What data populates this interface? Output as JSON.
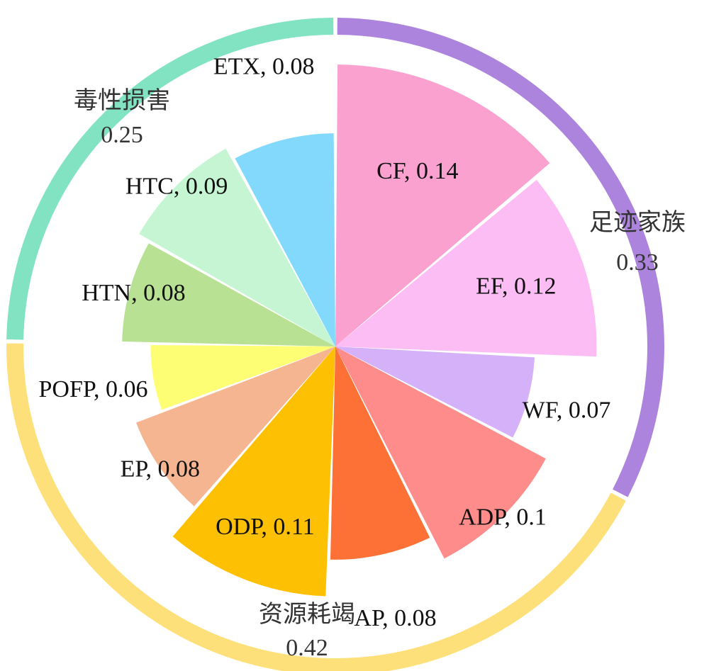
{
  "chart_data": {
    "type": "pie",
    "variant": "nightingale-rose-with-group-ring",
    "sectors": [
      {
        "label": "CF",
        "value": 0.14,
        "color": "#FBA1D0"
      },
      {
        "label": "EF",
        "value": 0.12,
        "color": "#FCBCF4"
      },
      {
        "label": "WF",
        "value": 0.07,
        "color": "#D5B1F9"
      },
      {
        "label": "ADP",
        "value": 0.1,
        "color": "#FD8C8A"
      },
      {
        "label": "AP",
        "value": 0.08,
        "color": "#FD7137"
      },
      {
        "label": "ODP",
        "value": 0.11,
        "color": "#FDC003"
      },
      {
        "label": "EP",
        "value": 0.08,
        "color": "#F6B591"
      },
      {
        "label": "POFP",
        "value": 0.06,
        "color": "#FEFE75"
      },
      {
        "label": "HTN",
        "value": 0.08,
        "color": "#B9E193"
      },
      {
        "label": "HTC",
        "value": 0.09,
        "color": "#C5F5D3"
      },
      {
        "label": "ETX",
        "value": 0.08,
        "color": "#82D9FC"
      }
    ],
    "groups": [
      {
        "name": "足迹家族",
        "value": "0.33",
        "color": "#AD84DD"
      },
      {
        "name": "资源耗竭",
        "value": "0.42",
        "color": "#FEE07B"
      },
      {
        "name": "毒性损害",
        "value": "0.25",
        "color": "#82E3C2"
      }
    ]
  }
}
